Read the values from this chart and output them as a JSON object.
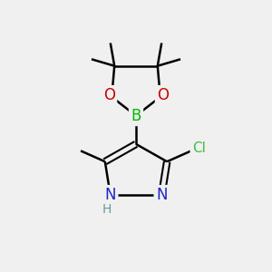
{
  "bg_color": "#f0f0f0",
  "atom_colors": {
    "C": "#000000",
    "H": "#669999",
    "N": "#2222cc",
    "O": "#cc0000",
    "B": "#00bb00",
    "Cl": "#44bb44"
  },
  "bond_color": "#000000",
  "bond_width": 1.8,
  "font_size": 11,
  "fig_size": [
    3.0,
    3.0
  ],
  "dpi": 100,
  "xlim": [
    0,
    10
  ],
  "ylim": [
    0,
    10
  ]
}
